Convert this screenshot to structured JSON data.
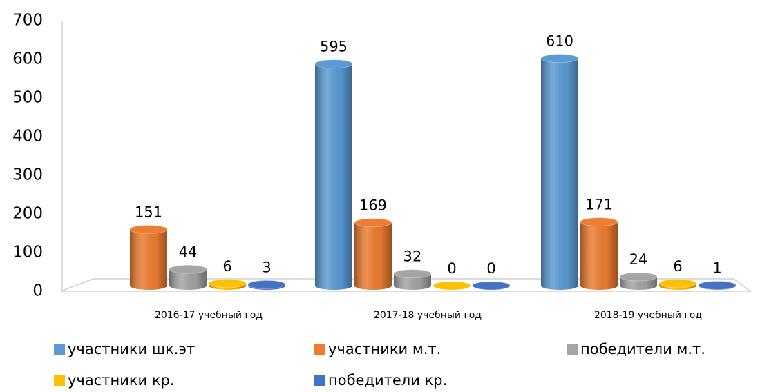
{
  "chart_data": {
    "type": "bar3d",
    "categories": [
      "2016-17 учебный год",
      "2017-18 учебный год",
      "2018-19 учебный год"
    ],
    "series": [
      {
        "name": "участники шк.эт",
        "color": "#5b9bd5",
        "values": [
          null,
          595,
          610
        ]
      },
      {
        "name": "участники м.т.",
        "color": "#ed7d31",
        "values": [
          151,
          169,
          171
        ]
      },
      {
        "name": "победители м.т.",
        "color": "#a5a5a5",
        "values": [
          44,
          32,
          24
        ]
      },
      {
        "name": "участники кр.",
        "color": "#ffc000",
        "values": [
          6,
          0,
          6
        ]
      },
      {
        "name": "победители кр.",
        "color": "#4472c4",
        "values": [
          3,
          0,
          1
        ]
      }
    ],
    "ylim": [
      0,
      700
    ],
    "yticks": [
      0,
      100,
      200,
      300,
      400,
      500,
      600,
      700
    ],
    "grid": false,
    "legend": "bottom"
  }
}
